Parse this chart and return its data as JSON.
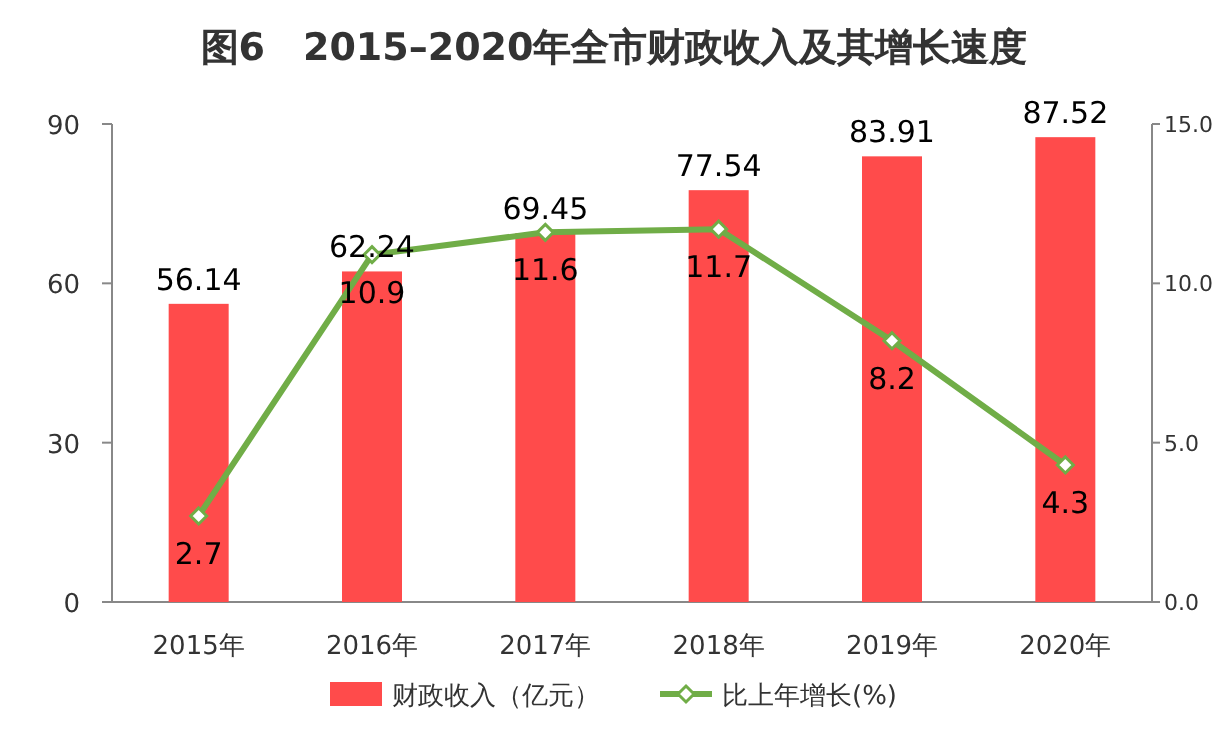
{
  "chart_data": {
    "type": "bar",
    "title": "图6　2015–2020年全市财政收入及其增长速度",
    "categories": [
      "2015年",
      "2016年",
      "2017年",
      "2018年",
      "2019年",
      "2020年"
    ],
    "series": [
      {
        "name": "财政收入（亿元）",
        "color": "#ff4b4b",
        "values": [
          56.14,
          62.24,
          69.45,
          77.54,
          83.91,
          87.52
        ]
      },
      {
        "name": "比上年增长(%)",
        "type": "line",
        "axis": "y2",
        "color": "#70ad47",
        "marker": "diamond",
        "values": [
          2.7,
          10.9,
          11.6,
          11.7,
          8.2,
          4.3
        ]
      }
    ],
    "ylim": [
      0,
      90
    ],
    "yticks": [
      0,
      30,
      60,
      90
    ],
    "y2lim": [
      0,
      15
    ],
    "y2ticks": [
      {
        "value": 0,
        "label": "0.0"
      },
      {
        "value": 5,
        "label": "5.0"
      },
      {
        "value": 10,
        "label": "10.0"
      },
      {
        "value": 15,
        "label": "15.0"
      }
    ],
    "data_labels": true,
    "legend": "bottom"
  }
}
